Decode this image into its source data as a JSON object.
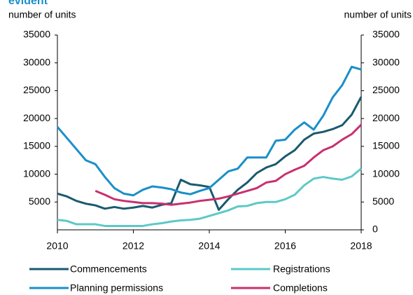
{
  "chart_data": {
    "type": "line",
    "title": "evident",
    "ylabel": "number of units",
    "y2label": "number of units",
    "x": [
      2010,
      2010.25,
      2010.5,
      2010.75,
      2011,
      2011.25,
      2011.5,
      2011.75,
      2012,
      2012.25,
      2012.5,
      2012.75,
      2013,
      2013.25,
      2013.5,
      2013.75,
      2014,
      2014.25,
      2014.5,
      2014.75,
      2015,
      2015.25,
      2015.5,
      2015.75,
      2016,
      2016.25,
      2016.5,
      2016.75,
      2017,
      2017.25,
      2017.5,
      2017.75,
      2018
    ],
    "xlim": [
      2010,
      2018
    ],
    "xticks": [
      2010,
      2012,
      2014,
      2016,
      2018
    ],
    "ylim": [
      0,
      35000
    ],
    "yticks": [
      5000,
      10000,
      15000,
      20000,
      25000,
      30000,
      35000
    ],
    "y2lim": [
      0,
      35000
    ],
    "y2ticks": [
      0,
      5000,
      10000,
      15000,
      20000,
      25000,
      30000,
      35000
    ],
    "series": [
      {
        "name": "Commencements",
        "color": "#1a5a6e",
        "values": [
          6500,
          6000,
          5200,
          4700,
          4400,
          3800,
          4100,
          3800,
          4000,
          4300,
          4000,
          4500,
          4800,
          9000,
          8200,
          8000,
          7700,
          3600,
          5500,
          7200,
          8500,
          10200,
          11200,
          11800,
          13200,
          14300,
          16200,
          17300,
          17600,
          18100,
          18800,
          20700,
          23900
        ]
      },
      {
        "name": "Registrations",
        "color": "#5ec8c8",
        "values": [
          1800,
          1600,
          1000,
          1000,
          1000,
          700,
          700,
          700,
          700,
          700,
          1000,
          1200,
          1500,
          1700,
          1800,
          2000,
          2500,
          3000,
          3500,
          4200,
          4300,
          4800,
          5000,
          5000,
          5500,
          6300,
          8000,
          9200,
          9500,
          9200,
          9000,
          9600,
          11000
        ]
      },
      {
        "name": "Planning permissions",
        "color": "#1a8fc8",
        "values": [
          18500,
          16500,
          14500,
          12500,
          11800,
          9500,
          7500,
          6500,
          6200,
          7200,
          7800,
          7600,
          7300,
          6700,
          6400,
          7000,
          7500,
          9000,
          10500,
          11000,
          13000,
          13000,
          13000,
          16000,
          16200,
          18000,
          19300,
          18000,
          20500,
          23800,
          26000,
          29300,
          28800
        ]
      },
      {
        "name": "Completions",
        "color": "#c8306e",
        "values": [
          null,
          null,
          null,
          null,
          7000,
          6300,
          5500,
          5200,
          5000,
          4800,
          4800,
          4700,
          4500,
          4700,
          4900,
          5200,
          5400,
          5600,
          6000,
          6500,
          7000,
          7500,
          8500,
          8800,
          10000,
          10800,
          11500,
          13000,
          14300,
          15000,
          16200,
          17200,
          18900
        ]
      }
    ]
  }
}
